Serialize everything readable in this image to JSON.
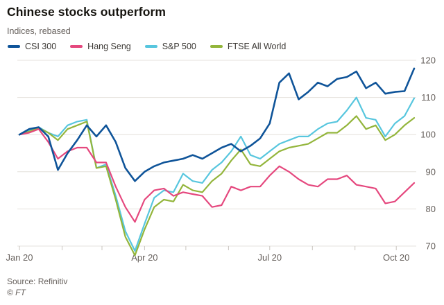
{
  "header": {
    "title": "Chinese stocks outperform",
    "subtitle": "Indices, rebased"
  },
  "footer": {
    "source": "Source: Refinitiv",
    "credit": "© FT"
  },
  "chart_data": {
    "type": "line",
    "title": "Chinese stocks outperform",
    "subtitle": "Indices, rebased",
    "grid": true,
    "legend_position": "top",
    "ylim": [
      70,
      120
    ],
    "y_axis": {
      "side": "right",
      "ticks": [
        70,
        80,
        90,
        100,
        110,
        120
      ]
    },
    "x_axis": {
      "range": "Jan 2020 to mid-Oct 2020",
      "ticks": [
        {
          "label": "Jan 20",
          "day": 0
        },
        {
          "label": "",
          "day": 31
        },
        {
          "label": "",
          "day": 60
        },
        {
          "label": "Apr 20",
          "day": 91
        },
        {
          "label": "",
          "day": 121
        },
        {
          "label": "",
          "day": 152
        },
        {
          "label": "Jul 20",
          "day": 182
        },
        {
          "label": "",
          "day": 213
        },
        {
          "label": "",
          "day": 244
        },
        {
          "label": "Oct 20",
          "day": 274
        }
      ]
    },
    "point_interval_days": 7,
    "series": [
      {
        "name": "CSI 300",
        "color": "#0f5499",
        "values": [
          100,
          101.5,
          102,
          99.5,
          90.5,
          95,
          98.5,
          102.5,
          99.5,
          102.5,
          98,
          91,
          87.5,
          90,
          91.5,
          92.5,
          93,
          93.5,
          94.5,
          93.5,
          95,
          96.5,
          97.5,
          95.5,
          97,
          99,
          103,
          114,
          116.5,
          109.5,
          111.5,
          114,
          113,
          115,
          115.5,
          117,
          112.5,
          114,
          111,
          111.5,
          111.7,
          117.8
        ]
      },
      {
        "name": "Hang Seng",
        "color": "#e5487e",
        "values": [
          100,
          100.5,
          101.5,
          98,
          93.5,
          95.5,
          96.5,
          96.5,
          92.5,
          92.5,
          86,
          80.5,
          76.5,
          82.5,
          85,
          85.5,
          83.5,
          84.5,
          84,
          83.5,
          80.5,
          81,
          86,
          85,
          86,
          86,
          89,
          91.5,
          90,
          88,
          86.5,
          86,
          88,
          88,
          89,
          86.5,
          86,
          85.5,
          81.5,
          82,
          84.5,
          87
        ]
      },
      {
        "name": "S&P 500",
        "color": "#57c6de",
        "values": [
          100,
          101,
          102,
          100.5,
          99.5,
          102.5,
          103.5,
          104,
          91,
          92,
          83.5,
          74,
          68.7,
          76,
          83,
          85,
          84.5,
          89.5,
          87.5,
          87,
          90.5,
          92.5,
          95.5,
          99.5,
          94.5,
          93.5,
          95.5,
          97.5,
          98.5,
          99.5,
          99.5,
          101.5,
          103,
          103.5,
          106.5,
          110,
          104.5,
          104,
          99.5,
          103,
          105,
          109.8
        ]
      },
      {
        "name": "FTSE All World",
        "color": "#93b53b",
        "values": [
          100,
          100.8,
          101.8,
          100.5,
          98.5,
          101.5,
          102.5,
          103.5,
          91,
          91.5,
          82.5,
          72.5,
          67.5,
          74.5,
          80.5,
          82.5,
          82,
          86.5,
          85,
          84.5,
          87.5,
          89.5,
          93,
          96,
          92,
          91.5,
          93.5,
          95.5,
          96.5,
          97,
          97.5,
          99,
          100.5,
          100.5,
          102.5,
          105,
          101.5,
          102.5,
          98.5,
          100,
          102.5,
          104.5
        ]
      }
    ]
  }
}
